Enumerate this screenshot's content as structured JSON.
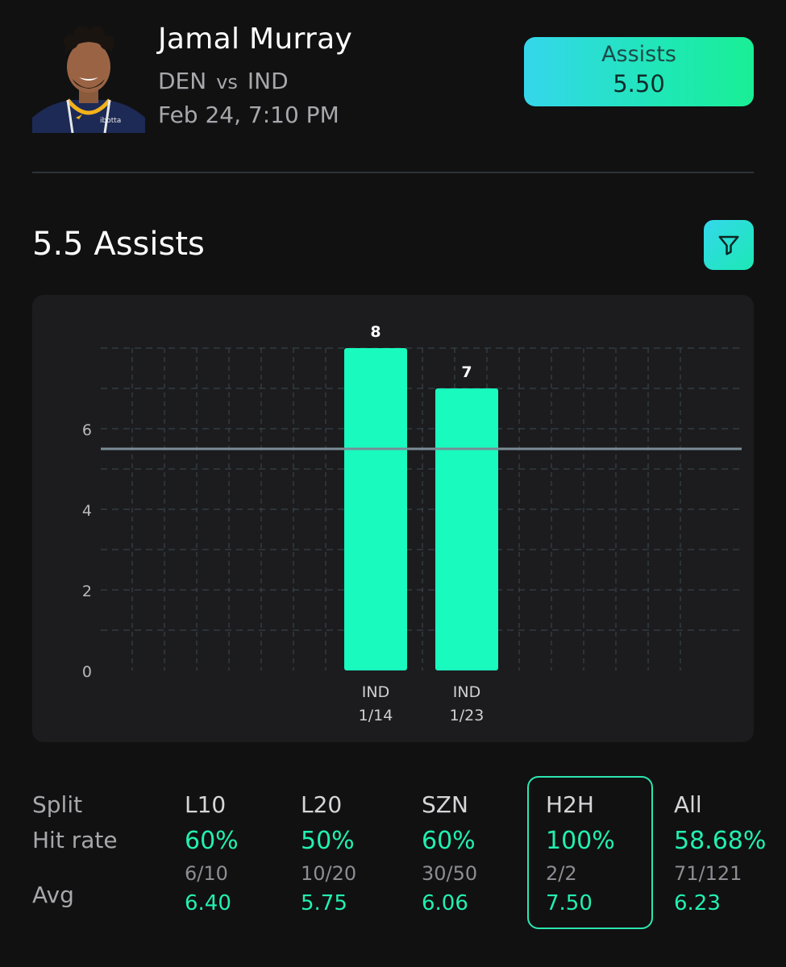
{
  "header": {
    "player_name": "Jamal Murray",
    "team": "DEN",
    "vs": "vs",
    "opponent": "IND",
    "datetime": "Feb 24, 7:10 PM",
    "avatar_icon": "player-headshot",
    "jersey_text": "ibotta"
  },
  "prop": {
    "stat": "Assists",
    "line": "5.50"
  },
  "section": {
    "title": "5.5 Assists",
    "filter_icon": "filter-funnel-icon"
  },
  "colors": {
    "accent_bar": "#19fbbe",
    "accent_text": "#22f0b0",
    "threshold_line": "#7a8c96",
    "badge_gradient_start": "#35d6ec",
    "badge_gradient_end": "#19ef95"
  },
  "chart_data": {
    "type": "bar",
    "categories": [
      "IND 1/14",
      "IND 1/23"
    ],
    "category_lines": [
      [
        "IND",
        "1/14"
      ],
      [
        "IND",
        "1/23"
      ]
    ],
    "values": [
      8,
      7
    ],
    "data_labels": [
      "8",
      "7"
    ],
    "threshold": 5.5,
    "ylim": [
      0,
      8
    ],
    "yticks": [
      0,
      2,
      4,
      6
    ],
    "grid": true
  },
  "splits": {
    "row_labels": {
      "split": "Split",
      "hit_rate": "Hit rate",
      "avg": "Avg"
    },
    "selected": "H2H",
    "columns": [
      {
        "split": "L10",
        "hit_rate": "60%",
        "fraction": "6/10",
        "avg": "6.40"
      },
      {
        "split": "L20",
        "hit_rate": "50%",
        "fraction": "10/20",
        "avg": "5.75"
      },
      {
        "split": "SZN",
        "hit_rate": "60%",
        "fraction": "30/50",
        "avg": "6.06"
      },
      {
        "split": "H2H",
        "hit_rate": "100%",
        "fraction": "2/2",
        "avg": "7.50"
      },
      {
        "split": "All",
        "hit_rate": "58.68%",
        "fraction": "71/121",
        "avg": "6.23"
      }
    ]
  }
}
